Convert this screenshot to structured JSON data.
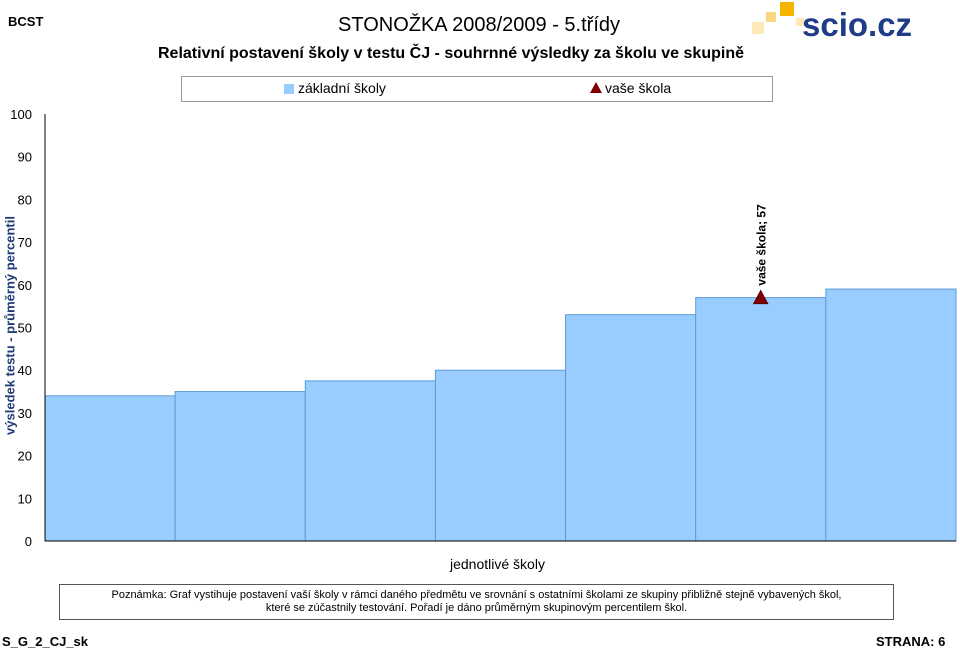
{
  "header": {
    "tag": "BCST",
    "title": "STONOŽKA 2008/2009 - 5.třídy",
    "logo_text": "scio.cz"
  },
  "chart_data": {
    "type": "bar",
    "title": "Relativní postavení školy v testu ČJ - souhrnné výsledky za školu  ve skupině",
    "xlabel": "jednotlivé školy",
    "ylabel": "výsledek testu - průměrný percentil",
    "ylim": [
      0,
      100
    ],
    "yticks": [
      0,
      10,
      20,
      30,
      40,
      50,
      60,
      70,
      80,
      90,
      100
    ],
    "series": [
      {
        "name": "základní školy",
        "values": [
          34,
          35,
          37.5,
          40,
          53,
          57,
          59
        ],
        "color": "#99ccff"
      }
    ],
    "marker": {
      "name": "vaše škola",
      "index": 5,
      "value": 57,
      "label": "vaše škola; 57",
      "color": "#800000"
    },
    "legend_position": "top"
  },
  "note": {
    "line1": "Poznámka: Graf vystihuje postavení vaší školy v rámci daného předmětu ve srovnání s ostatními školami ze skupiny přibližně stejně vybavených škol,",
    "line2": "které se zúčastnily testování. Pořadí je dáno průměrným skupinovým percentilem škol."
  },
  "footer": {
    "code": "S_G_2_CJ_sk",
    "page": "STRANA: 6"
  }
}
